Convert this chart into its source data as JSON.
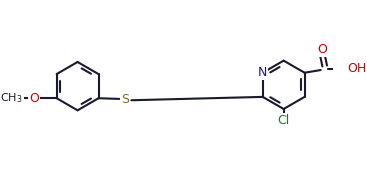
{
  "background_color": "#ffffff",
  "bond_color": "#1a1a2e",
  "atom_colors": {
    "N": "#1a1a8c",
    "O": "#cc0000",
    "S": "#8b6914",
    "Cl": "#2d6e2d",
    "C": "#000000",
    "H": "#000000"
  },
  "line_width": 1.5,
  "font_size": 9,
  "fig_width": 3.67,
  "fig_height": 1.77,
  "bl": 0.36
}
